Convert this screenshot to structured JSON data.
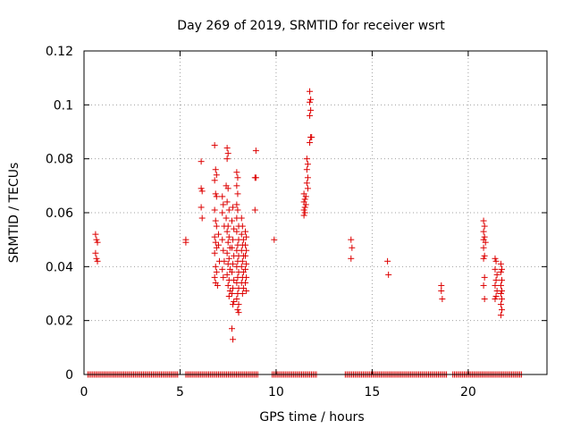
{
  "chart_data": {
    "type": "scatter",
    "title": "Day 269 of 2019, SRMTID for receiver wsrt",
    "xlabel": "GPS time / hours",
    "ylabel": "SRMTID / TECUs",
    "xlim": [
      0,
      24.1
    ],
    "ylim": [
      0,
      0.12
    ],
    "x_ticks": [
      0,
      5,
      10,
      15,
      20
    ],
    "x_tick_labels": [
      "0",
      "5",
      "10",
      "15",
      "20"
    ],
    "y_ticks": [
      0,
      0.02,
      0.04,
      0.06,
      0.08,
      0.1,
      0.12
    ],
    "y_tick_labels": [
      "0",
      "0.02",
      "0.04",
      "0.06",
      "0.08",
      "0.1",
      "0.12"
    ],
    "grid": true,
    "marker": "plus",
    "color": "#dd0000",
    "series": [
      {
        "points": [
          [
            0.6,
            0.052
          ],
          [
            0.65,
            0.05
          ],
          [
            0.7,
            0.049
          ],
          [
            0.6,
            0.045
          ],
          [
            0.65,
            0.043
          ],
          [
            0.7,
            0.042
          ],
          [
            5.3,
            0.05
          ],
          [
            5.3,
            0.049
          ],
          [
            6.1,
            0.079
          ],
          [
            6.1,
            0.069
          ],
          [
            6.15,
            0.068
          ],
          [
            6.1,
            0.062
          ],
          [
            6.15,
            0.058
          ],
          [
            6.8,
            0.085
          ],
          [
            6.85,
            0.076
          ],
          [
            6.9,
            0.074
          ],
          [
            6.8,
            0.072
          ],
          [
            6.85,
            0.067
          ],
          [
            6.9,
            0.066
          ],
          [
            6.8,
            0.061
          ],
          [
            6.85,
            0.057
          ],
          [
            6.9,
            0.055
          ],
          [
            6.8,
            0.051
          ],
          [
            6.85,
            0.049
          ],
          [
            6.9,
            0.047
          ],
          [
            6.8,
            0.045
          ],
          [
            6.85,
            0.04
          ],
          [
            6.9,
            0.038
          ],
          [
            6.8,
            0.036
          ],
          [
            6.85,
            0.034
          ],
          [
            6.95,
            0.033
          ],
          [
            7.0,
            0.052
          ],
          [
            7.0,
            0.048
          ],
          [
            7.05,
            0.042
          ],
          [
            7.2,
            0.066
          ],
          [
            7.25,
            0.063
          ],
          [
            7.2,
            0.06
          ],
          [
            7.3,
            0.055
          ],
          [
            7.2,
            0.05
          ],
          [
            7.25,
            0.046
          ],
          [
            7.3,
            0.042
          ],
          [
            7.2,
            0.039
          ],
          [
            7.25,
            0.036
          ],
          [
            7.45,
            0.084
          ],
          [
            7.5,
            0.082
          ],
          [
            7.45,
            0.08
          ],
          [
            7.4,
            0.07
          ],
          [
            7.5,
            0.069
          ],
          [
            7.45,
            0.064
          ],
          [
            7.55,
            0.061
          ],
          [
            7.4,
            0.058
          ],
          [
            7.5,
            0.055
          ],
          [
            7.45,
            0.053
          ],
          [
            7.55,
            0.051
          ],
          [
            7.5,
            0.049
          ],
          [
            7.6,
            0.047
          ],
          [
            7.45,
            0.045
          ],
          [
            7.55,
            0.043
          ],
          [
            7.5,
            0.041
          ],
          [
            7.6,
            0.039
          ],
          [
            7.45,
            0.037
          ],
          [
            7.55,
            0.035
          ],
          [
            7.5,
            0.033
          ],
          [
            7.6,
            0.031
          ],
          [
            7.55,
            0.029
          ],
          [
            7.75,
            0.062
          ],
          [
            7.7,
            0.057
          ],
          [
            7.8,
            0.054
          ],
          [
            7.75,
            0.05
          ],
          [
            7.7,
            0.047
          ],
          [
            7.8,
            0.044
          ],
          [
            7.75,
            0.041
          ],
          [
            7.7,
            0.038
          ],
          [
            7.8,
            0.035
          ],
          [
            7.75,
            0.032
          ],
          [
            7.7,
            0.03
          ],
          [
            7.8,
            0.027
          ],
          [
            7.75,
            0.026
          ],
          [
            7.7,
            0.017
          ],
          [
            7.75,
            0.013
          ],
          [
            7.95,
            0.075
          ],
          [
            8.0,
            0.073
          ],
          [
            7.95,
            0.07
          ],
          [
            8.0,
            0.067
          ],
          [
            7.95,
            0.063
          ],
          [
            8.0,
            0.061
          ],
          [
            7.95,
            0.058
          ],
          [
            8.05,
            0.055
          ],
          [
            7.95,
            0.053
          ],
          [
            8.05,
            0.05
          ],
          [
            8.0,
            0.048
          ],
          [
            7.95,
            0.046
          ],
          [
            8.05,
            0.044
          ],
          [
            8.0,
            0.042
          ],
          [
            7.95,
            0.04
          ],
          [
            8.05,
            0.038
          ],
          [
            8.0,
            0.036
          ],
          [
            7.95,
            0.034
          ],
          [
            8.05,
            0.032
          ],
          [
            8.0,
            0.03
          ],
          [
            7.95,
            0.028
          ],
          [
            8.05,
            0.026
          ],
          [
            8.0,
            0.024
          ],
          [
            8.05,
            0.023
          ],
          [
            8.2,
            0.058
          ],
          [
            8.25,
            0.055
          ],
          [
            8.2,
            0.052
          ],
          [
            8.3,
            0.05
          ],
          [
            8.25,
            0.048
          ],
          [
            8.2,
            0.046
          ],
          [
            8.3,
            0.044
          ],
          [
            8.25,
            0.042
          ],
          [
            8.2,
            0.04
          ],
          [
            8.3,
            0.038
          ],
          [
            8.25,
            0.036
          ],
          [
            8.2,
            0.034
          ],
          [
            8.3,
            0.032
          ],
          [
            8.25,
            0.03
          ],
          [
            8.4,
            0.053
          ],
          [
            8.45,
            0.051
          ],
          [
            8.4,
            0.048
          ],
          [
            8.45,
            0.046
          ],
          [
            8.4,
            0.044
          ],
          [
            8.45,
            0.041
          ],
          [
            8.4,
            0.039
          ],
          [
            8.45,
            0.036
          ],
          [
            8.4,
            0.034
          ],
          [
            8.45,
            0.031
          ],
          [
            8.95,
            0.083
          ],
          [
            8.9,
            0.073
          ],
          [
            8.95,
            0.073
          ],
          [
            8.9,
            0.061
          ],
          [
            9.9,
            0.05
          ],
          [
            11.45,
            0.067
          ],
          [
            11.5,
            0.065
          ],
          [
            11.45,
            0.064
          ],
          [
            11.5,
            0.062
          ],
          [
            11.45,
            0.061
          ],
          [
            11.5,
            0.06
          ],
          [
            11.45,
            0.059
          ],
          [
            11.55,
            0.066
          ],
          [
            11.55,
            0.063
          ],
          [
            11.6,
            0.08
          ],
          [
            11.65,
            0.078
          ],
          [
            11.6,
            0.076
          ],
          [
            11.65,
            0.073
          ],
          [
            11.6,
            0.071
          ],
          [
            11.65,
            0.069
          ],
          [
            11.75,
            0.105
          ],
          [
            11.8,
            0.102
          ],
          [
            11.75,
            0.101
          ],
          [
            11.8,
            0.098
          ],
          [
            11.75,
            0.096
          ],
          [
            11.8,
            0.088
          ],
          [
            11.85,
            0.088
          ],
          [
            11.75,
            0.086
          ],
          [
            13.9,
            0.05
          ],
          [
            13.95,
            0.047
          ],
          [
            13.9,
            0.043
          ],
          [
            15.8,
            0.042
          ],
          [
            15.85,
            0.037
          ],
          [
            18.6,
            0.033
          ],
          [
            18.6,
            0.031
          ],
          [
            18.65,
            0.028
          ],
          [
            20.8,
            0.057
          ],
          [
            20.85,
            0.055
          ],
          [
            20.8,
            0.053
          ],
          [
            20.85,
            0.051
          ],
          [
            20.8,
            0.05
          ],
          [
            20.9,
            0.049
          ],
          [
            20.8,
            0.047
          ],
          [
            20.85,
            0.044
          ],
          [
            20.8,
            0.043
          ],
          [
            20.85,
            0.036
          ],
          [
            20.8,
            0.033
          ],
          [
            20.85,
            0.028
          ],
          [
            21.4,
            0.043
          ],
          [
            21.45,
            0.042
          ],
          [
            21.4,
            0.039
          ],
          [
            21.5,
            0.037
          ],
          [
            21.45,
            0.035
          ],
          [
            21.4,
            0.033
          ],
          [
            21.5,
            0.031
          ],
          [
            21.45,
            0.029
          ],
          [
            21.4,
            0.028
          ],
          [
            21.7,
            0.041
          ],
          [
            21.75,
            0.039
          ],
          [
            21.7,
            0.038
          ],
          [
            21.75,
            0.035
          ],
          [
            21.7,
            0.033
          ],
          [
            21.75,
            0.031
          ],
          [
            21.7,
            0.03
          ],
          [
            21.75,
            0.028
          ],
          [
            21.7,
            0.026
          ],
          [
            21.75,
            0.024
          ],
          [
            21.7,
            0.022
          ]
        ],
        "zero_ranges": [
          [
            0.2,
            4.95
          ],
          [
            5.3,
            9.1
          ],
          [
            9.8,
            12.1
          ],
          [
            13.6,
            18.9
          ],
          [
            19.2,
            22.8
          ]
        ]
      }
    ]
  }
}
